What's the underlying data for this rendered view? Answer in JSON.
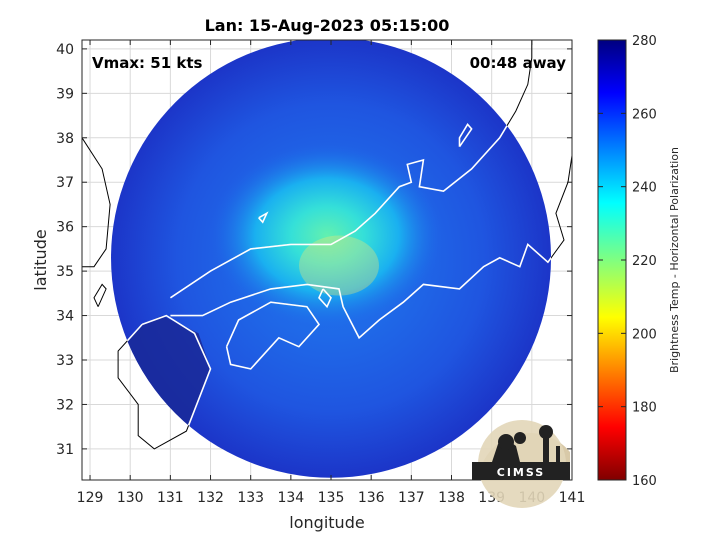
{
  "chart_data": {
    "type": "heatmap",
    "title": "Lan: 15-Aug-2023 05:15:00",
    "xlabel": "longitude",
    "ylabel": "latitude",
    "xlim": [
      128.8,
      141
    ],
    "ylim": [
      30.3,
      40.2
    ],
    "x_ticks": [
      129,
      130,
      131,
      132,
      133,
      134,
      135,
      136,
      137,
      138,
      139,
      140,
      141
    ],
    "y_ticks": [
      31,
      32,
      33,
      34,
      35,
      36,
      37,
      38,
      39,
      40
    ],
    "grid": true,
    "annotations": {
      "vmax": "Vmax: 51 kts",
      "time_away": "00:48 away"
    },
    "colorbar": {
      "label": "Brightness Temp - Horizontal Polarization",
      "min": 160,
      "max": 280,
      "ticks": [
        160,
        180,
        200,
        220,
        240,
        260,
        280
      ],
      "colormap": "jet"
    },
    "swath": {
      "center_lon": 135.0,
      "center_lat": 35.3,
      "radius_deg_lat": 4.95
    },
    "storm_center": {
      "lon": 134.9,
      "lat": 35.8,
      "min_temp": 236
    },
    "background_temp": 268,
    "logo_text": "CIMSS"
  }
}
